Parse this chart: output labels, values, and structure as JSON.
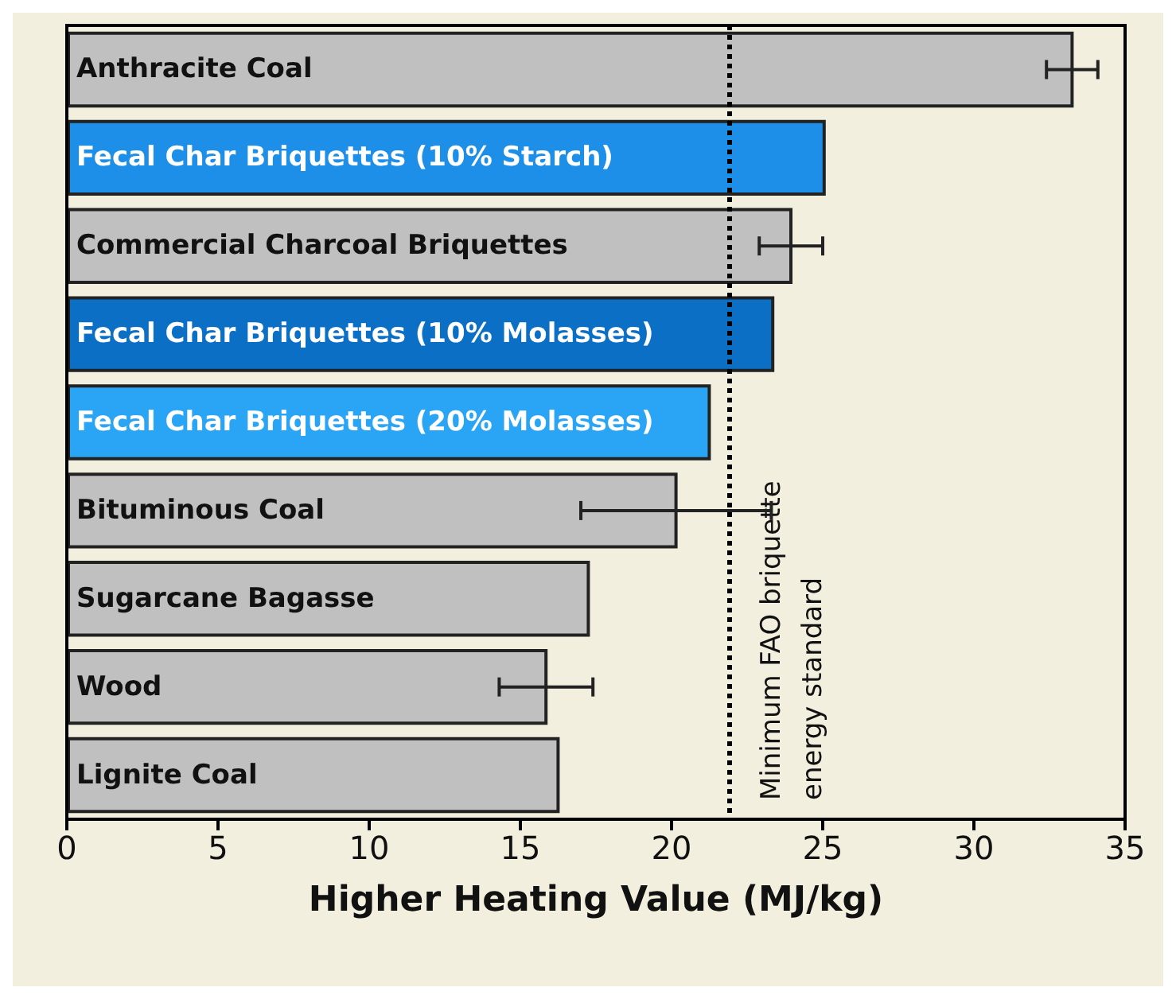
{
  "chart_data": {
    "type": "bar",
    "orientation": "horizontal",
    "xlabel": "Higher Heating Value (MJ/kg)",
    "categories": [
      "Anthracite Coal",
      "Fecal Char Briquettes (10% Starch)",
      "Commercial Charcoal Briquettes",
      "Fecal Char Briquettes (10% Molasses)",
      "Fecal Char Briquettes (20% Molasses)",
      "Bituminous Coal",
      "Sugarcane Bagasse",
      "Wood",
      "Lignite Coal"
    ],
    "values": [
      33.3,
      25.1,
      24.0,
      23.4,
      21.3,
      20.2,
      17.3,
      15.9,
      16.3
    ],
    "colors": [
      "#c0c0c0",
      "#1e8fe8",
      "#c0c0c0",
      "#0b6fc6",
      "#2aa4f4",
      "#c0c0c0",
      "#c0c0c0",
      "#c0c0c0",
      "#c0c0c0"
    ],
    "errors": [
      [
        32.4,
        34.1
      ],
      null,
      [
        22.9,
        25.0
      ],
      null,
      null,
      [
        17.0,
        23.3
      ],
      null,
      [
        14.3,
        17.4
      ],
      null
    ],
    "xlim": [
      0,
      35
    ],
    "xticks": [
      0,
      5,
      10,
      15,
      20,
      25,
      30,
      35
    ],
    "grid": false,
    "ref_lines": [
      {
        "axis": "x",
        "value": 21.9,
        "label": "Minimum FAO briquette\nenergy standard",
        "line_style": "dotted",
        "color": "#000000"
      }
    ]
  }
}
